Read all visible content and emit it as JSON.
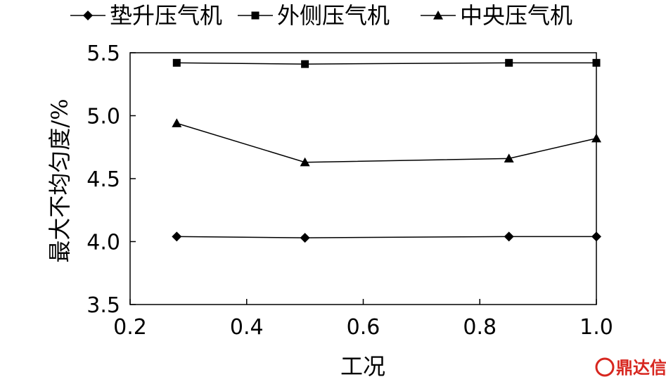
{
  "chart_data": {
    "type": "line",
    "title": "",
    "xlabel": "工况",
    "ylabel": "最大不均匀度/%",
    "xlim": [
      0.2,
      1.0
    ],
    "ylim": [
      3.5,
      5.5
    ],
    "xticks": [
      "0.2",
      "0.4",
      "0.6",
      "0.8",
      "1.0"
    ],
    "yticks": [
      "3.5",
      "4.0",
      "4.5",
      "5.0",
      "5.5"
    ],
    "grid": false,
    "legend_position": "top",
    "series": [
      {
        "name": "垫升压气机",
        "marker": "diamond",
        "x": [
          0.28,
          0.5,
          0.85,
          1.0
        ],
        "y": [
          4.04,
          4.03,
          4.04,
          4.04
        ]
      },
      {
        "name": "外侧压气机",
        "marker": "square",
        "x": [
          0.28,
          0.5,
          0.85,
          1.0
        ],
        "y": [
          5.42,
          5.41,
          5.42,
          5.42
        ]
      },
      {
        "name": "中央压气机",
        "marker": "triangle",
        "x": [
          0.28,
          0.5,
          0.85,
          1.0
        ],
        "y": [
          4.94,
          4.63,
          4.66,
          4.82
        ]
      }
    ]
  },
  "watermark": {
    "text": "鼎达信",
    "color": "#d7261f"
  }
}
